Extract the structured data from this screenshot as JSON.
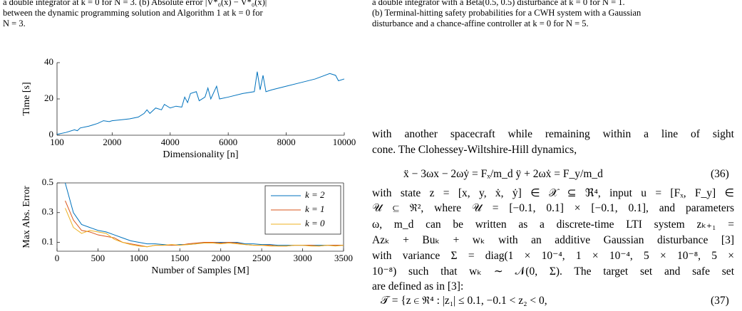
{
  "left_caption": {
    "lines": [
      "a double integrator at k = 0 for N = 3. (b) Absolute error |V*₀(x) − V̂*₀(x)|",
      "between the dynamic programming solution and Algorithm 1 at k = 0 for",
      "N = 3."
    ]
  },
  "right_caption": {
    "lines": [
      "a double integrator with a Beta(0.5, 0.5) disturbance at k = 0 for N = 1.",
      "(b) Terminal-hitting safety probabilities for a CWH system with a Gaussian",
      "disturbance and a chance-affine controller at k = 0 for N = 5."
    ]
  },
  "body": {
    "lines": [
      "with another spacecraft while remaining within a line of sight",
      "cone. The Clohessey-Wiltshire-Hill dynamics,",
      "with state z = [x, y, ẋ, ẏ] ∈ 𝒳 ⊆ ℜ⁴, input u = [Fₓ, F_y] ∈",
      "𝒰 ⊆ ℜ², where 𝒰 = [−0.1, 0.1] × [−0.1, 0.1], and parameters",
      "ω, m_d can be written as a discrete-time LTI system zₖ₊₁ =",
      "Azₖ + Buₖ + wₖ with an additive Gaussian disturbance [3]",
      "with variance Σ = diag(1 × 10⁻⁴, 1 × 10⁻⁴, 5 × 10⁻⁸, 5 ×",
      "10⁻⁸) such that wₖ ∼ 𝒩(0, Σ). The target set and safe set",
      "are defined as in [3]:"
    ]
  },
  "equations": [
    {
      "text": "ẍ − 3ωx − 2ωẏ = Fₓ/m_d      ÿ + 2ωẋ = F_y/m_d",
      "number": "(36)"
    },
    {
      "text": "𝒯 = {z ∈ ℜ⁴ : |z₁| ≤ 0.1, −0.1 < z₂ < 0,",
      "number": "(37)"
    }
  ],
  "chart_data": [
    {
      "type": "line",
      "xlabel": "Dimensionality [n]",
      "ylabel": "Time [s]",
      "x": [
        100,
        400,
        700,
        800,
        900,
        1200,
        1500,
        1700,
        1900,
        2000,
        2300,
        2600,
        2900,
        3100,
        3200,
        3300,
        3500,
        3700,
        3800,
        4000,
        4200,
        4400,
        4500,
        4600,
        4700,
        4900,
        5000,
        5200,
        5300,
        5400,
        5600,
        5700,
        6000,
        6500,
        6900,
        7000,
        7100,
        7200,
        7300,
        7500,
        8000,
        8500,
        9000,
        9500,
        9700,
        9800,
        10000
      ],
      "series": [
        {
          "color": "#0072bd",
          "values": [
            0.5,
            1.5,
            3,
            2.5,
            4,
            5,
            6.5,
            8,
            7.5,
            8,
            8.5,
            9,
            10,
            12,
            14,
            12,
            15,
            14,
            17,
            15,
            16,
            15.5,
            21,
            18,
            23,
            24,
            19,
            21,
            26,
            20,
            27,
            20,
            21,
            23,
            24,
            35,
            25,
            33,
            24,
            25,
            27,
            29,
            31,
            34,
            33,
            30,
            31
          ]
        }
      ],
      "xlim": [
        100,
        10000
      ],
      "ylim": [
        0,
        40
      ],
      "xticks": [
        100,
        2000,
        4000,
        6000,
        8000,
        10000
      ],
      "yticks": [
        0,
        20,
        40
      ],
      "box": false
    },
    {
      "type": "line",
      "xlabel": "Number of Samples [M]",
      "ylabel": "Max Abs. Error",
      "x": [
        100,
        200,
        300,
        400,
        500,
        600,
        700,
        800,
        900,
        1000,
        1100,
        1200,
        1300,
        1400,
        1500,
        1600,
        1700,
        1800,
        1900,
        2000,
        2100,
        2200,
        2300,
        2400,
        2500,
        2600,
        2700,
        2800,
        2900,
        3000,
        3100,
        3200,
        3300,
        3400,
        3500
      ],
      "series": [
        {
          "name": "k = 2",
          "color": "#0072bd",
          "values": [
            0.5,
            0.3,
            0.22,
            0.2,
            0.18,
            0.17,
            0.15,
            0.13,
            0.11,
            0.1,
            0.09,
            0.09,
            0.085,
            0.08,
            0.085,
            0.085,
            0.09,
            0.1,
            0.1,
            0.1,
            0.1,
            0.1,
            0.09,
            0.09,
            0.085,
            0.085,
            0.08,
            0.08,
            0.08,
            0.08,
            0.08,
            0.08,
            0.08,
            0.08,
            0.08
          ]
        },
        {
          "name": "k = 1",
          "color": "#d95319",
          "values": [
            0.38,
            0.25,
            0.18,
            0.17,
            0.15,
            0.14,
            0.13,
            0.1,
            0.09,
            0.08,
            0.07,
            0.08,
            0.08,
            0.08,
            0.08,
            0.09,
            0.095,
            0.1,
            0.1,
            0.095,
            0.1,
            0.095,
            0.085,
            0.08,
            0.08,
            0.08,
            0.075,
            0.075,
            0.08,
            0.08,
            0.08,
            0.075,
            0.08,
            0.08,
            0.08
          ]
        },
        {
          "name": "k = 0",
          "color": "#edb120",
          "values": [
            0.33,
            0.2,
            0.16,
            0.18,
            0.17,
            0.16,
            0.12,
            0.1,
            0.085,
            0.075,
            0.07,
            0.08,
            0.08,
            0.085,
            0.08,
            0.085,
            0.09,
            0.095,
            0.095,
            0.09,
            0.095,
            0.09,
            0.085,
            0.08,
            0.08,
            0.075,
            0.075,
            0.075,
            0.08,
            0.08,
            0.075,
            0.075,
            0.08,
            0.075,
            0.08
          ]
        }
      ],
      "xlim": [
        0,
        3500
      ],
      "ylim": [
        0.04,
        0.5
      ],
      "xticks": [
        0,
        500,
        1000,
        1500,
        2000,
        2500,
        3000,
        3500
      ],
      "yticks": [
        0.1,
        0.3,
        0.5
      ],
      "box": true,
      "legend": "upper right"
    }
  ]
}
